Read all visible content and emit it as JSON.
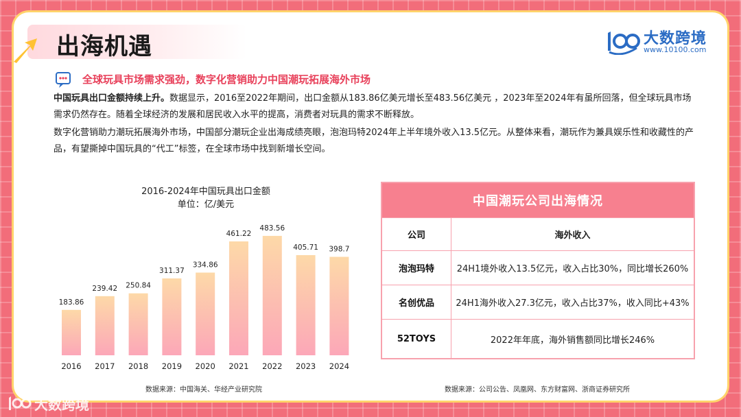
{
  "header": {
    "title": "出海机遇",
    "logo_name": "大数跨境",
    "logo_url": "www.10100.com"
  },
  "section": {
    "heading": "全球玩具市场需求强劲，数字化营销助力中国潮玩拓展海外市场",
    "p1_bold": "中国玩具出口金额持续上升。",
    "p1_rest": "数据显示，2016至2022年期间，出口金额从183.86亿美元增长至483.56亿美元 ，2023年至2024年有虽所回落，但全球玩具市场需求仍然存在。随着全球经济的发展和居民收入水平的提高，消费者对玩具的需求不断释放。",
    "p2": "数字化营销助力潮玩拓展海外市场，中国部分潮玩企业出海成绩亮眼，泡泡玛特2024年上半年境外收入13.5亿元。从整体来看，潮玩作为兼具娱乐性和收藏性的产品，有望撕掉中国玩具的“代工”标签，在全球市场中找到新增长空间。"
  },
  "chart_data": {
    "type": "bar",
    "title": "2016-2024年中国玩具出口金额",
    "subtitle": "单位：亿/美元",
    "categories": [
      "2016",
      "2017",
      "2018",
      "2019",
      "2020",
      "2021",
      "2022",
      "2023",
      "2024"
    ],
    "values": [
      183.86,
      239.42,
      250.84,
      311.37,
      334.86,
      461.22,
      483.56,
      405.71,
      398.7
    ],
    "value_labels": [
      "183.86",
      "239.42",
      "250.84",
      "311.37",
      "334.86",
      "461.22",
      "483.56",
      "405.71",
      "398.7"
    ],
    "ylim": [
      0,
      500
    ],
    "grid": false,
    "bar_color_top": "#fdd9a8",
    "bar_color_bottom": "#fca7b8"
  },
  "chart_source": "数据来源：中国海关、华经产业研究院",
  "table": {
    "title": "中国潮玩公司出海情况",
    "col_company": "公司",
    "col_revenue": "海外收入",
    "rows": [
      {
        "company": "泡泡玛特",
        "revenue": "24H1境外收入13.5亿元，收入占比30%，同比增长260%"
      },
      {
        "company": "名创优品",
        "revenue": "24H1海外收入27.3亿元，收入占比37%，收入同比+43%"
      },
      {
        "company": "52TOYS",
        "revenue": "2022年年底，海外销售额同比增长246%"
      }
    ]
  },
  "table_source": "数据来源：公司公告、凤凰网、东方财富网、浙商证券研究所",
  "watermark": "大数跨境",
  "colors": {
    "accent": "#e8405a",
    "table_header": "#f7808f",
    "frame": "#f26d7a",
    "brand_blue": "#2b6cc4"
  }
}
